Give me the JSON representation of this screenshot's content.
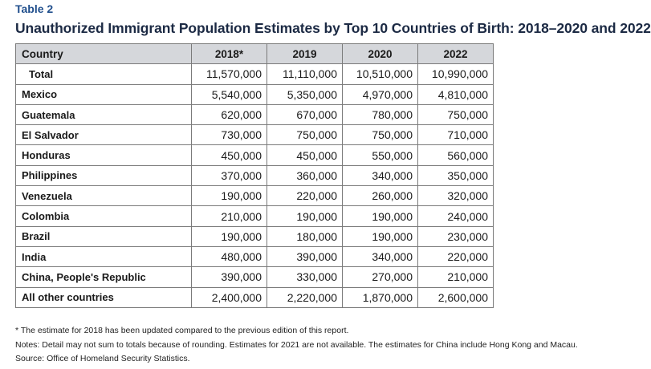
{
  "label": "Table 2",
  "title": "Unauthorized Immigrant Population Estimates by Top 10 Countries of Birth: 2018–2020 and 2022",
  "columns": [
    "Country",
    "2018*",
    "2019",
    "2020",
    "2022"
  ],
  "rows": [
    {
      "country": "Total",
      "v2018": "11,570,000",
      "v2019": "11,110,000",
      "v2020": "10,510,000",
      "v2022": "10,990,000"
    },
    {
      "country": "Mexico",
      "v2018": "5,540,000",
      "v2019": "5,350,000",
      "v2020": "4,970,000",
      "v2022": "4,810,000"
    },
    {
      "country": "Guatemala",
      "v2018": "620,000",
      "v2019": "670,000",
      "v2020": "780,000",
      "v2022": "750,000"
    },
    {
      "country": "El Salvador",
      "v2018": "730,000",
      "v2019": "750,000",
      "v2020": "750,000",
      "v2022": "710,000"
    },
    {
      "country": "Honduras",
      "v2018": "450,000",
      "v2019": "450,000",
      "v2020": "550,000",
      "v2022": "560,000"
    },
    {
      "country": "Philippines",
      "v2018": "370,000",
      "v2019": "360,000",
      "v2020": "340,000",
      "v2022": "350,000"
    },
    {
      "country": "Venezuela",
      "v2018": "190,000",
      "v2019": "220,000",
      "v2020": "260,000",
      "v2022": "320,000"
    },
    {
      "country": "Colombia",
      "v2018": "210,000",
      "v2019": "190,000",
      "v2020": "190,000",
      "v2022": "240,000"
    },
    {
      "country": "Brazil",
      "v2018": "190,000",
      "v2019": "180,000",
      "v2020": "190,000",
      "v2022": "230,000"
    },
    {
      "country": "India",
      "v2018": "480,000",
      "v2019": "390,000",
      "v2020": "340,000",
      "v2022": "220,000"
    },
    {
      "country": "China, People's Republic",
      "v2018": "390,000",
      "v2019": "330,000",
      "v2020": "270,000",
      "v2022": "210,000"
    },
    {
      "country": "All other countries",
      "v2018": "2,400,000",
      "v2019": "2,220,000",
      "v2020": "1,870,000",
      "v2022": "2,600,000"
    }
  ],
  "notes": [
    "* The estimate for 2018 has been updated compared to the previous edition of this report.",
    "Notes: Detail may not sum to totals because of rounding. Estimates for 2021 are not available. The estimates for China include Hong Kong and Macau.",
    "Source: Office of Homeland Security Statistics."
  ],
  "colors": {
    "label": "#1f4e8c",
    "header_bg": "#d5d7db",
    "border": "#7a7a7a"
  }
}
